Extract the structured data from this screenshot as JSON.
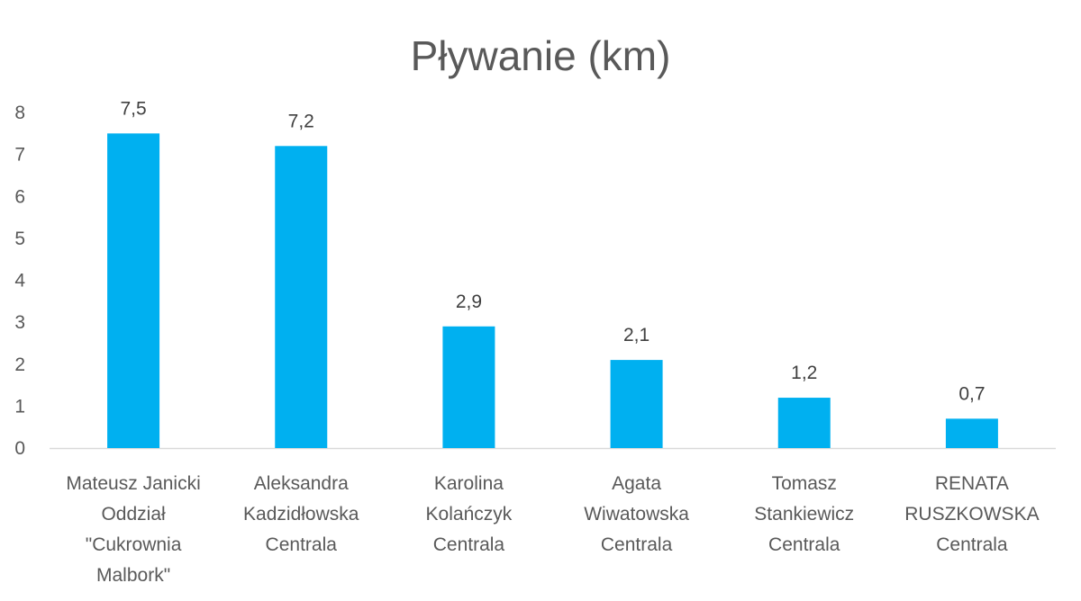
{
  "chart_data": {
    "type": "bar",
    "title": "Pływanie (km)",
    "xlabel": "",
    "ylabel": "",
    "ylim": [
      0,
      8
    ],
    "yticks": [
      0,
      1,
      2,
      3,
      4,
      5,
      6,
      7,
      8
    ],
    "grid": false,
    "categories": [
      [
        "Mateusz Janicki",
        "Oddział",
        "\"Cukrownia",
        "Malbork\""
      ],
      [
        "Aleksandra",
        "Kadzidłowska",
        "Centrala"
      ],
      [
        "Karolina",
        "Kolańczyk",
        "Centrala"
      ],
      [
        "Agata",
        "Wiwatowska",
        "Centrala"
      ],
      [
        "Tomasz",
        "Stankiewicz",
        "Centrala"
      ],
      [
        "RENATA",
        "RUSZKOWSKA",
        "Centrala"
      ]
    ],
    "values": [
      7.5,
      7.2,
      2.9,
      2.1,
      1.2,
      0.7
    ],
    "data_labels": [
      "7,5",
      "7,2",
      "2,9",
      "2,1",
      "1,2",
      "0,7"
    ],
    "bar_color": "#00B0F0",
    "axis_color": "#D9D9D9"
  }
}
